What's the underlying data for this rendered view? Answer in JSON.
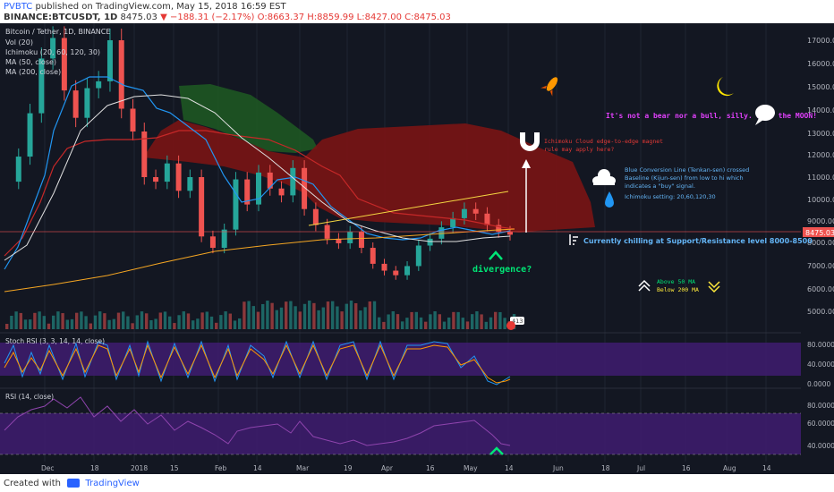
{
  "header": {
    "publisher": "PVBTC",
    "published_text": "published on TradingView.com, May 15, 2018 16:59 EST",
    "symbol": "BINANCE:BTCUSDT, 1D",
    "last": "8475.03",
    "change": "▼ −188.31 (−2.17%)",
    "ohlc": "O:8663.37 H:8859.99 L:8427.00 C:8475.03"
  },
  "legend": {
    "title": "Bitcoin / Tether, 1D, BINANCE",
    "items": [
      "Vol (20)",
      "Ichimoku (20, 60, 120, 30)",
      "MA (50, close)",
      "MA (200, close)"
    ]
  },
  "panels": {
    "stoch_label": "Stoch RSI (3, 3, 14, 14, close)",
    "rsi_label": "RSI (14, close)",
    "volume_badge": "413"
  },
  "annotations": {
    "moon_text": "It's not a bear nor a bull, silly. It's the MOON!",
    "cloud_note_1": "Ichimoku Cloud edge-to-edge magnet",
    "cloud_note_2": "rule may apply here?",
    "baseline_note_1": "Blue Conversion Line (Tenkan-sen) crossed",
    "baseline_note_2": "Baseline (Kijun-sen) from low to hi which",
    "baseline_note_3": "indicates a \"buy\" signal.",
    "ichimoku_setting": "Ichimoku setting: 20,60,120,30",
    "support_text": "Currently chilling at Support/Resistance level 8000-8500",
    "divergence": "divergence?",
    "above_ma": "Above 50 MA",
    "below_ma": "Below 200 MA"
  },
  "chart_data": [
    {
      "type": "line",
      "title": "Bitcoin / Tether, 1D, BINANCE",
      "x_ticks": [
        "Dec",
        "18",
        "2018",
        "15",
        "Feb",
        "14",
        "Mar",
        "19",
        "Apr",
        "16",
        "May",
        "14",
        "Jun",
        "18",
        "Jul",
        "16",
        "Aug",
        "14"
      ],
      "y_ticks": [
        17000,
        16000,
        15000,
        14000,
        13000,
        12000,
        11000,
        10000,
        9000,
        8000,
        7000,
        6000,
        5000
      ],
      "ylim": [
        4300,
        17600
      ],
      "last_price_label": "8475.03",
      "series": [
        {
          "values": [
            10800,
            11900,
            13800,
            16200,
            17100,
            14800,
            13600,
            14900,
            15200,
            17000,
            14000,
            13000,
            11000,
            10800,
            11600,
            10400,
            11000,
            8400,
            7900,
            8700,
            10900,
            9800,
            11200,
            10500,
            10200,
            11400,
            9600,
            8900,
            8300,
            8100,
            8600,
            7900,
            7200,
            6900,
            6700,
            7100,
            8000,
            8300,
            8800,
            9200,
            9600,
            9400,
            8900,
            8600,
            8475
          ]
        }
      ]
    },
    {
      "type": "line",
      "title": "Stoch RSI (3, 3, 14, 14, close)",
      "y_ticks": [
        "80.0000",
        "40.0000",
        "0.0000"
      ],
      "ylim": [
        0,
        100
      ]
    },
    {
      "type": "line",
      "title": "RSI (14, close)",
      "y_ticks": [
        "80.0000",
        "60.0000",
        "40.0000"
      ],
      "ylim": [
        30,
        90
      ]
    }
  ],
  "footer": {
    "created_with": "Created with",
    "brand": "TradingView"
  },
  "colors": {
    "background": "#131722",
    "cloud_bearish": "#7a1414",
    "cloud_bullish": "#1e5a22",
    "up": "#26a69a",
    "down": "#ef5350",
    "tenkan": "#2196f3",
    "kijun": "#b71c1c",
    "ma50": "#ffffff",
    "ma200": "#f5a623",
    "stoch_band": "#3d1c6b"
  }
}
